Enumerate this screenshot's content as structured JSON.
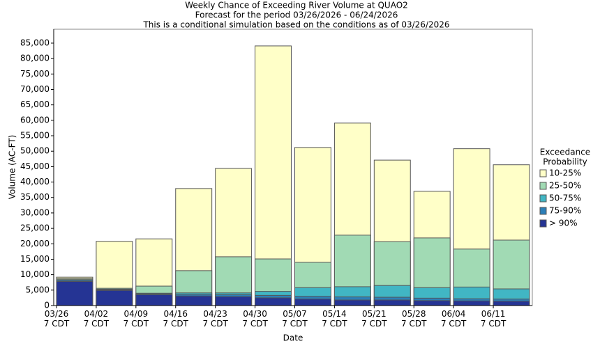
{
  "chart_data": {
    "type": "bar",
    "title": "Weekly Chance of Exceeding River Volume at QUAO2",
    "subtitle": "Forecast for the period 03/26/2026 - 06/24/2026",
    "note": "This is a conditional simulation based on the conditions as of 03/26/2026",
    "x_label": "Date",
    "y_label": "Volume (AC-FT)",
    "categories": [
      "03/26",
      "04/02",
      "04/09",
      "04/16",
      "04/23",
      "04/30",
      "05/07",
      "05/14",
      "05/21",
      "05/28",
      "06/04",
      "06/11"
    ],
    "x_label_suffix": "7 CDT",
    "legend_title": [
      "Exceedance",
      "Probability"
    ],
    "legend_position": "right",
    "series": [
      {
        "name": "10-25%",
        "color": "#ffffc8",
        "values": [
          9200,
          20800,
          21600,
          37900,
          44400,
          84100,
          51200,
          59100,
          47100,
          37000,
          50800,
          45600
        ]
      },
      {
        "name": "25-50%",
        "color": "#a1dab4",
        "values": [
          8700,
          5600,
          6300,
          11300,
          15800,
          15100,
          14000,
          22800,
          20700,
          21900,
          18300,
          21200
        ]
      },
      {
        "name": "50-75%",
        "color": "#41b6c4",
        "values": [
          8400,
          5300,
          4000,
          4100,
          4100,
          4600,
          5800,
          6100,
          6500,
          5800,
          6000,
          5400
        ]
      },
      {
        "name": "75-90%",
        "color": "#2c7fb8",
        "values": [
          8200,
          5100,
          3800,
          3600,
          3500,
          3300,
          3000,
          2800,
          2700,
          2400,
          2200,
          2100
        ]
      },
      {
        "name": "> 90%",
        "color": "#253494",
        "values": [
          7800,
          4900,
          3500,
          3100,
          2900,
          2500,
          2100,
          1800,
          1800,
          1600,
          1500,
          1400
        ]
      }
    ],
    "ylim": [
      0,
      89500
    ],
    "yticks": [
      0,
      {
        "value": 5000,
        "label": "5,000"
      },
      {
        "value": 10000,
        "label": "10,000"
      },
      {
        "value": 15000,
        "label": "15,000"
      },
      {
        "value": 20000,
        "label": "20,000"
      },
      {
        "value": 25000,
        "label": "25,000"
      },
      {
        "value": 30000,
        "label": "30,000"
      },
      {
        "value": 35000,
        "label": "35,000"
      },
      {
        "value": 40000,
        "label": "40,000"
      },
      {
        "value": 45000,
        "label": "45,000"
      },
      {
        "value": 50000,
        "label": "50,000"
      },
      {
        "value": 55000,
        "label": "55,000"
      },
      {
        "value": 60000,
        "label": "60,000"
      },
      {
        "value": 65000,
        "label": "65,000"
      },
      {
        "value": 70000,
        "label": "70,000"
      },
      {
        "value": 75000,
        "label": "75,000"
      },
      {
        "value": 80000,
        "label": "80,000"
      },
      {
        "value": 85000,
        "label": "85,000"
      }
    ],
    "grid": false
  }
}
